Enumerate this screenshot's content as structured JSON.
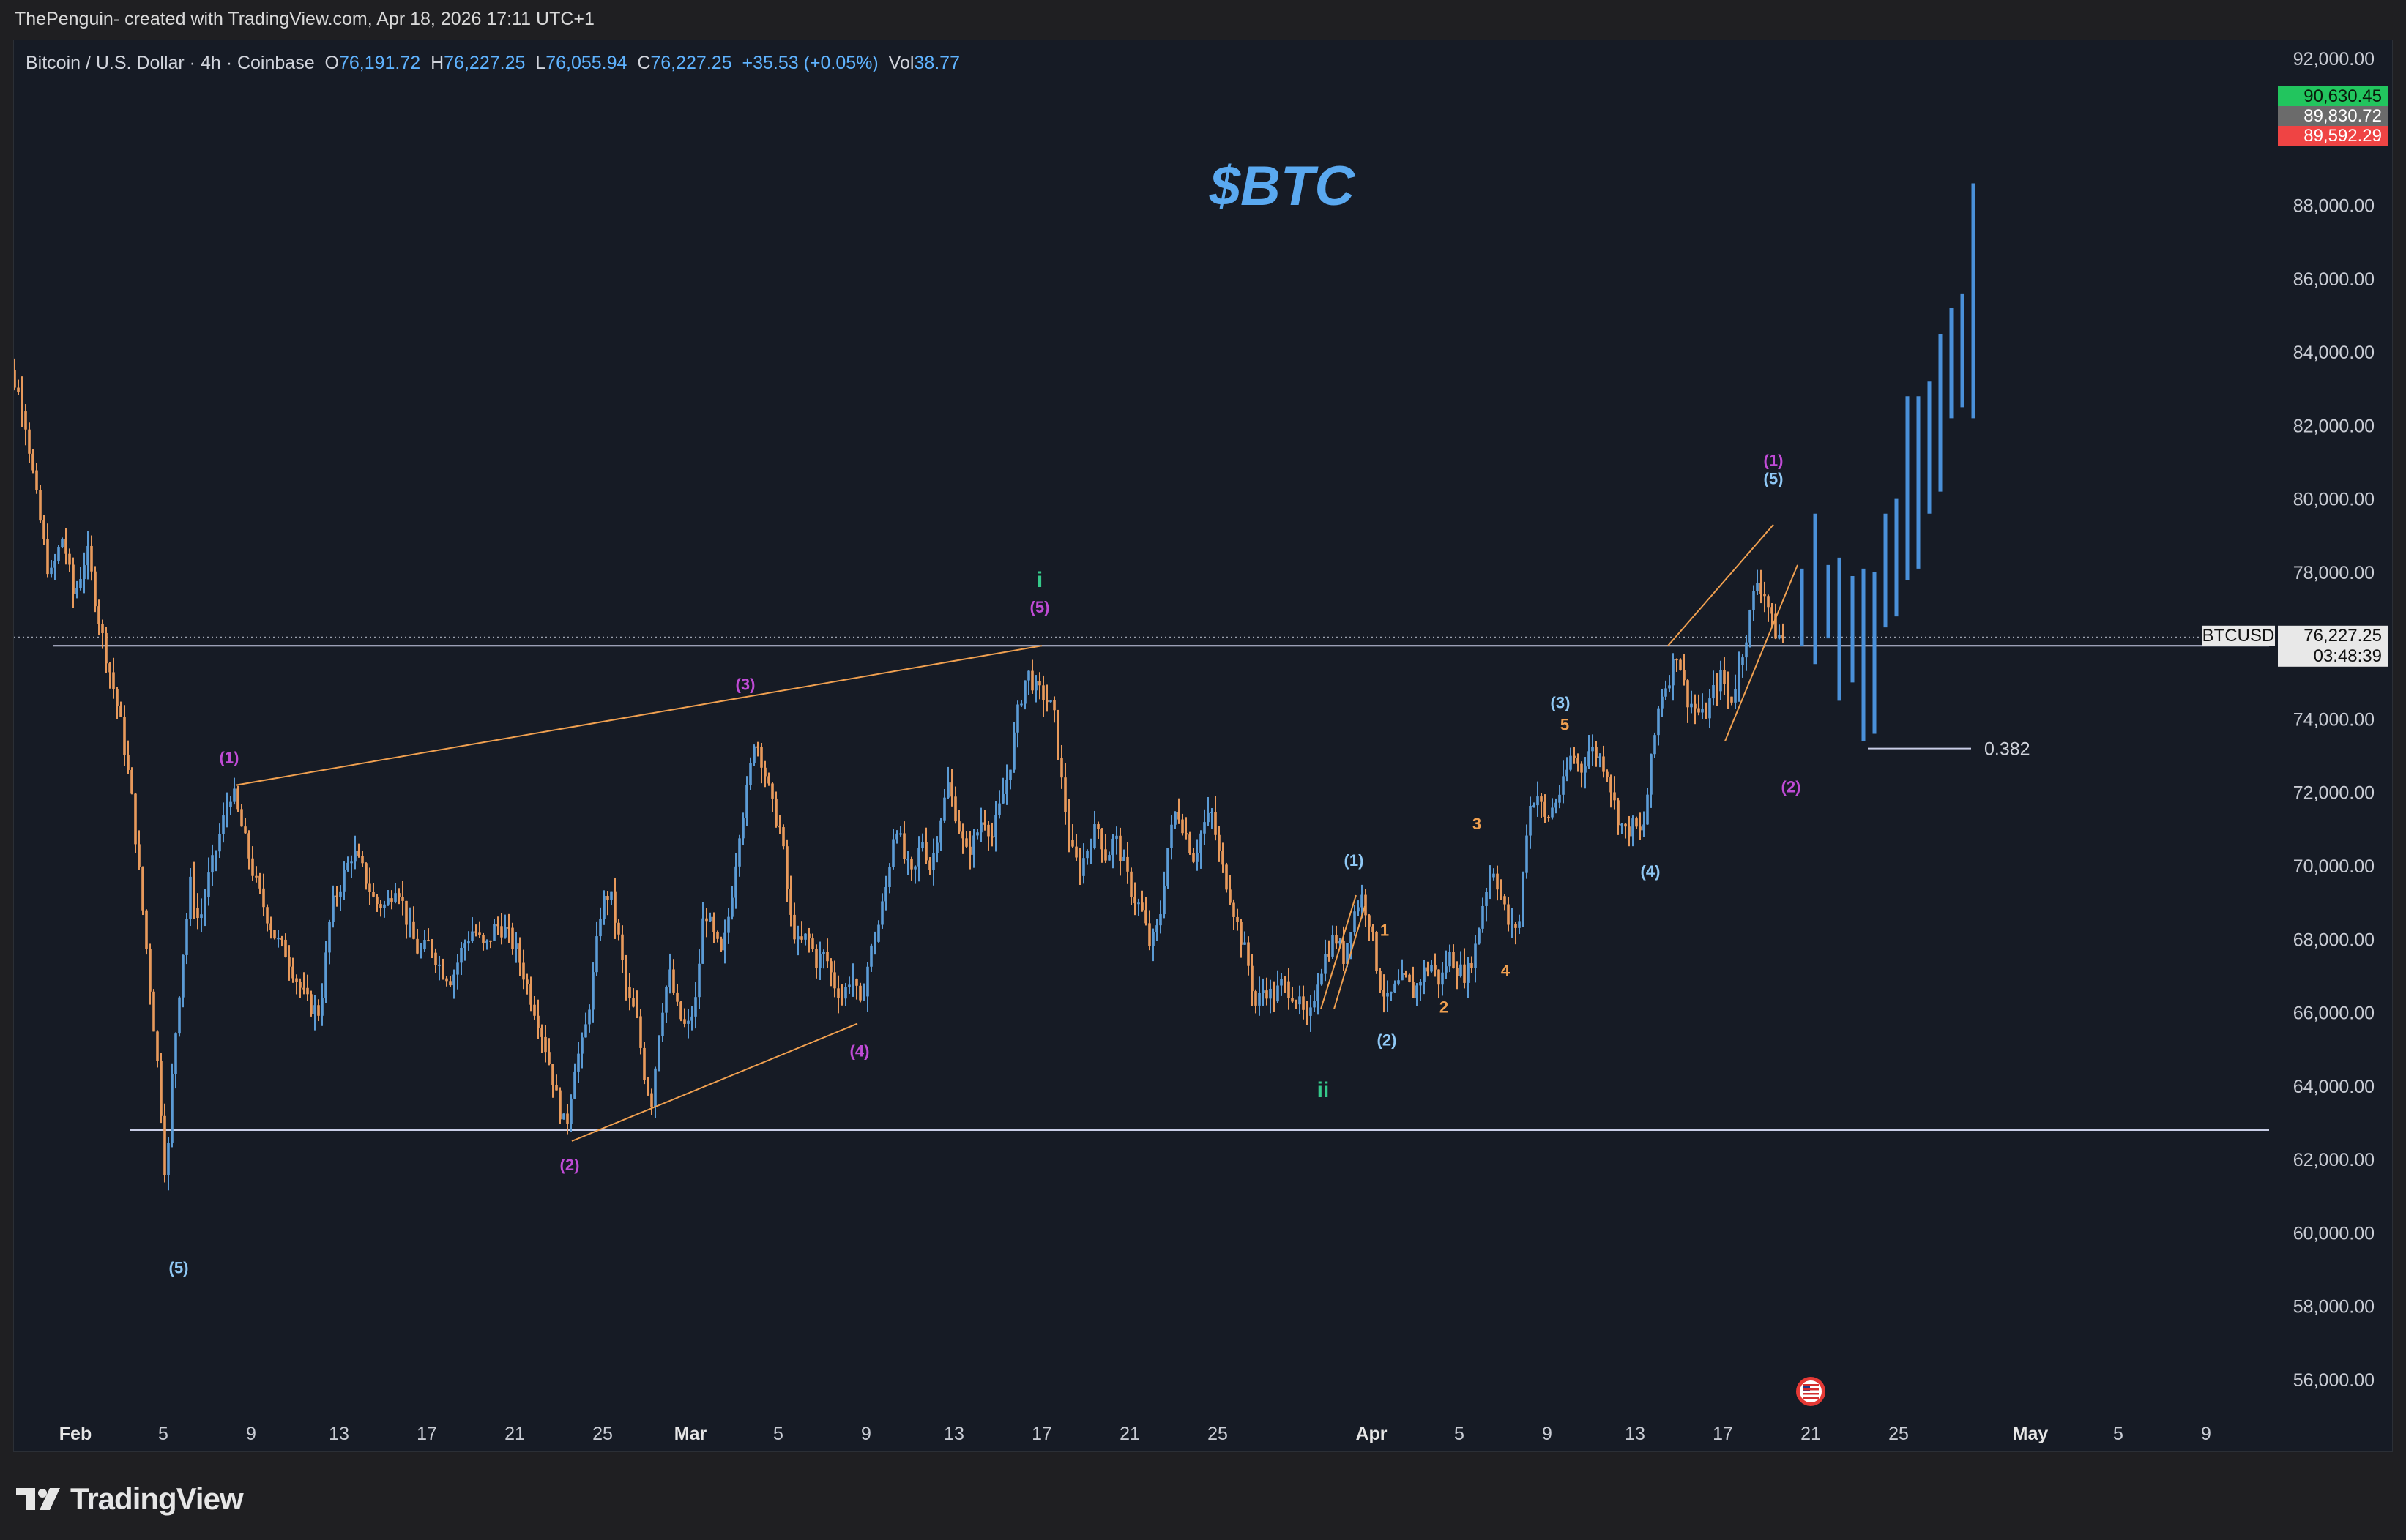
{
  "header": {
    "attribution": "ThePenguin- created with TradingView.com, Apr 18, 2026 17:11 UTC+1"
  },
  "legend": {
    "symbol": "Bitcoin / U.S. Dollar · 4h · Coinbase",
    "o_label": "O",
    "o_value": "76,191.72",
    "h_label": "H",
    "h_value": "76,227.25",
    "l_label": "L",
    "l_value": "76,055.94",
    "c_label": "C",
    "c_value": "76,227.25",
    "change": "+35.53 (+0.05%)",
    "vol_label": "Vol",
    "vol_value": "38.77"
  },
  "footer": {
    "brand": "TradingView"
  },
  "colors": {
    "background": "#161b25",
    "bull": "#5b9bd5",
    "bear": "#e89a5c",
    "projection": "#4a90d9",
    "title": "#5aa9f0",
    "magenta": "#c04bd6",
    "lightblue": "#8fc8f5",
    "orange": "#f0a050",
    "green": "#35c98a",
    "level_line": "#c8cde6"
  },
  "chart_data": {
    "type": "candlestick",
    "title": "$BTC",
    "instrument": "BTCUSD",
    "timeframe": "4h",
    "ylim": [
      55000,
      92500
    ],
    "y_ticks": [
      56000,
      58000,
      60000,
      62000,
      64000,
      66000,
      68000,
      70000,
      72000,
      74000,
      76000,
      78000,
      80000,
      82000,
      84000,
      86000,
      88000,
      90000,
      92000
    ],
    "y_tick_labels": [
      "56,000.00",
      "58,000.00",
      "60,000.00",
      "62,000.00",
      "64,000.00",
      "66,000.00",
      "68,000.00",
      "70,000.00",
      "72,000.00",
      "74,000.00",
      "76,000.00",
      "78,000.00",
      "80,000.00",
      "82,000.00",
      "84,000.00",
      "86,000.00",
      "88,000.00",
      "90,000.00",
      "92,000.00"
    ],
    "x_ticks": [
      {
        "label": "Feb",
        "day": 1,
        "bold": true
      },
      {
        "label": "5",
        "day": 5
      },
      {
        "label": "9",
        "day": 9
      },
      {
        "label": "13",
        "day": 13
      },
      {
        "label": "17",
        "day": 17
      },
      {
        "label": "21",
        "day": 21
      },
      {
        "label": "25",
        "day": 25
      },
      {
        "label": "Mar",
        "day": 29,
        "bold": true
      },
      {
        "label": "5",
        "day": 33
      },
      {
        "label": "9",
        "day": 37
      },
      {
        "label": "13",
        "day": 41
      },
      {
        "label": "17",
        "day": 45
      },
      {
        "label": "21",
        "day": 49
      },
      {
        "label": "25",
        "day": 53
      },
      {
        "label": "Apr",
        "day": 60,
        "bold": true
      },
      {
        "label": "5",
        "day": 64
      },
      {
        "label": "9",
        "day": 68
      },
      {
        "label": "13",
        "day": 72
      },
      {
        "label": "17",
        "day": 76
      },
      {
        "label": "21",
        "day": 80
      },
      {
        "label": "25",
        "day": 84
      },
      {
        "label": "May",
        "day": 90,
        "bold": true
      },
      {
        "label": "5",
        "day": 94
      },
      {
        "label": "9",
        "day": 98
      }
    ],
    "price_path": [
      [
        -2.6,
        88200
      ],
      [
        -2.3,
        84000
      ],
      [
        -1.8,
        83500
      ],
      [
        -1.2,
        82500
      ],
      [
        -0.6,
        80000
      ],
      [
        0.0,
        77800
      ],
      [
        0.6,
        79000
      ],
      [
        1.1,
        77300
      ],
      [
        1.7,
        78600
      ],
      [
        2.3,
        76500
      ],
      [
        2.7,
        75400
      ],
      [
        3.2,
        74000
      ],
      [
        3.7,
        72000
      ],
      [
        4.2,
        69000
      ],
      [
        4.6,
        66500
      ],
      [
        5.0,
        64000
      ],
      [
        5.3,
        61200
      ],
      [
        5.6,
        64600
      ],
      [
        6.0,
        67300
      ],
      [
        6.4,
        69500
      ],
      [
        6.8,
        68400
      ],
      [
        7.2,
        69600
      ],
      [
        7.6,
        70500
      ],
      [
        8.0,
        71500
      ],
      [
        8.3,
        72100
      ],
      [
        8.8,
        70900
      ],
      [
        9.3,
        69700
      ],
      [
        9.8,
        68800
      ],
      [
        10.3,
        68000
      ],
      [
        10.8,
        67600
      ],
      [
        11.3,
        66800
      ],
      [
        11.8,
        66200
      ],
      [
        12.3,
        66000
      ],
      [
        12.8,
        68800
      ],
      [
        13.3,
        69600
      ],
      [
        13.8,
        70400
      ],
      [
        14.3,
        69800
      ],
      [
        14.8,
        69000
      ],
      [
        15.3,
        68900
      ],
      [
        15.8,
        69600
      ],
      [
        16.3,
        68400
      ],
      [
        16.8,
        67600
      ],
      [
        17.3,
        67900
      ],
      [
        17.8,
        67200
      ],
      [
        18.3,
        66900
      ],
      [
        18.8,
        67800
      ],
      [
        19.3,
        68300
      ],
      [
        19.8,
        67700
      ],
      [
        20.3,
        68400
      ],
      [
        20.8,
        68200
      ],
      [
        21.3,
        67600
      ],
      [
        21.8,
        66600
      ],
      [
        22.3,
        65700
      ],
      [
        22.8,
        64500
      ],
      [
        23.1,
        63600
      ],
      [
        23.5,
        62800
      ],
      [
        23.9,
        64600
      ],
      [
        24.3,
        65200
      ],
      [
        24.7,
        66800
      ],
      [
        25.1,
        68900
      ],
      [
        25.5,
        69300
      ],
      [
        25.9,
        68000
      ],
      [
        26.3,
        66400
      ],
      [
        26.7,
        65900
      ],
      [
        27.1,
        64200
      ],
      [
        27.4,
        63600
      ],
      [
        27.8,
        65900
      ],
      [
        28.2,
        67100
      ],
      [
        28.6,
        66000
      ],
      [
        29.0,
        65500
      ],
      [
        29.4,
        66300
      ],
      [
        29.8,
        68900
      ],
      [
        30.2,
        68100
      ],
      [
        30.6,
        67500
      ],
      [
        31.0,
        69000
      ],
      [
        31.4,
        71000
      ],
      [
        31.8,
        72200
      ],
      [
        32.1,
        73600
      ],
      [
        32.5,
        72700
      ],
      [
        32.9,
        71600
      ],
      [
        33.3,
        70900
      ],
      [
        33.7,
        68600
      ],
      [
        34.1,
        67800
      ],
      [
        34.5,
        68100
      ],
      [
        34.9,
        67400
      ],
      [
        35.3,
        67600
      ],
      [
        35.7,
        66800
      ],
      [
        36.1,
        66400
      ],
      [
        36.5,
        67100
      ],
      [
        36.9,
        66100
      ],
      [
        37.3,
        67500
      ],
      [
        37.7,
        68300
      ],
      [
        38.1,
        69500
      ],
      [
        38.5,
        71300
      ],
      [
        38.9,
        70200
      ],
      [
        39.3,
        69600
      ],
      [
        39.7,
        70800
      ],
      [
        40.1,
        69900
      ],
      [
        40.5,
        71200
      ],
      [
        40.9,
        72200
      ],
      [
        41.3,
        71300
      ],
      [
        41.7,
        70300
      ],
      [
        42.1,
        70700
      ],
      [
        42.5,
        71400
      ],
      [
        42.9,
        70800
      ],
      [
        43.3,
        71700
      ],
      [
        43.7,
        72700
      ],
      [
        44.1,
        74300
      ],
      [
        44.5,
        75300
      ],
      [
        44.9,
        74800
      ],
      [
        45.3,
        74600
      ],
      [
        45.7,
        74200
      ],
      [
        46.1,
        72100
      ],
      [
        46.5,
        70400
      ],
      [
        46.9,
        69900
      ],
      [
        47.3,
        70600
      ],
      [
        47.7,
        71100
      ],
      [
        48.1,
        70200
      ],
      [
        48.5,
        70800
      ],
      [
        48.9,
        70000
      ],
      [
        49.3,
        69200
      ],
      [
        49.7,
        68800
      ],
      [
        50.1,
        67800
      ],
      [
        50.5,
        68400
      ],
      [
        50.9,
        70500
      ],
      [
        51.3,
        71600
      ],
      [
        51.7,
        70900
      ],
      [
        52.1,
        70200
      ],
      [
        52.5,
        71100
      ],
      [
        52.9,
        71400
      ],
      [
        53.3,
        70100
      ],
      [
        53.7,
        69300
      ],
      [
        54.1,
        68300
      ],
      [
        54.5,
        67500
      ],
      [
        54.9,
        66200
      ],
      [
        55.3,
        66700
      ],
      [
        55.7,
        66400
      ],
      [
        56.1,
        66800
      ],
      [
        56.5,
        66600
      ],
      [
        56.9,
        66200
      ],
      [
        57.3,
        65600
      ],
      [
        57.7,
        66900
      ],
      [
        58.1,
        67600
      ],
      [
        58.5,
        68100
      ],
      [
        58.9,
        67500
      ],
      [
        59.3,
        68600
      ],
      [
        59.7,
        69200
      ],
      [
        60.1,
        68500
      ],
      [
        60.5,
        66900
      ],
      [
        60.9,
        66300
      ],
      [
        61.3,
        66700
      ],
      [
        61.7,
        66900
      ],
      [
        62.1,
        66500
      ],
      [
        62.5,
        67100
      ],
      [
        62.9,
        67300
      ],
      [
        63.3,
        66800
      ],
      [
        63.7,
        67600
      ],
      [
        64.1,
        67200
      ],
      [
        64.5,
        67000
      ],
      [
        64.9,
        67800
      ],
      [
        65.3,
        69200
      ],
      [
        65.7,
        70000
      ],
      [
        66.1,
        69100
      ],
      [
        66.5,
        68200
      ],
      [
        66.9,
        68500
      ],
      [
        67.3,
        71500
      ],
      [
        67.7,
        72000
      ],
      [
        68.1,
        71200
      ],
      [
        68.5,
        71700
      ],
      [
        68.9,
        72200
      ],
      [
        69.3,
        73100
      ],
      [
        69.7,
        72600
      ],
      [
        70.1,
        73200
      ],
      [
        70.5,
        73000
      ],
      [
        70.9,
        72600
      ],
      [
        71.3,
        71500
      ],
      [
        71.7,
        70900
      ],
      [
        72.1,
        71100
      ],
      [
        72.5,
        70800
      ],
      [
        72.9,
        72800
      ],
      [
        73.3,
        74600
      ],
      [
        73.7,
        75100
      ],
      [
        74.1,
        75900
      ],
      [
        74.5,
        74600
      ],
      [
        74.9,
        74300
      ],
      [
        75.3,
        74000
      ],
      [
        75.7,
        74700
      ],
      [
        76.1,
        75200
      ],
      [
        76.5,
        74400
      ],
      [
        76.9,
        75400
      ],
      [
        77.3,
        76500
      ],
      [
        77.7,
        77800
      ],
      [
        78.1,
        77400
      ],
      [
        78.5,
        76400
      ],
      [
        78.9,
        76200
      ]
    ],
    "projection": [
      {
        "day": 79.6,
        "low": 76000,
        "high": 78100
      },
      {
        "day": 80.2,
        "low": 75500,
        "high": 79600
      },
      {
        "day": 80.8,
        "low": 76200,
        "high": 78200
      },
      {
        "day": 81.3,
        "low": 74500,
        "high": 78400
      },
      {
        "day": 81.9,
        "low": 75000,
        "high": 77900
      },
      {
        "day": 82.4,
        "low": 73400,
        "high": 78100
      },
      {
        "day": 82.9,
        "low": 73600,
        "high": 78000
      },
      {
        "day": 83.4,
        "low": 76500,
        "high": 79600
      },
      {
        "day": 83.9,
        "low": 76800,
        "high": 80000
      },
      {
        "day": 84.4,
        "low": 77800,
        "high": 82800
      },
      {
        "day": 84.9,
        "low": 78100,
        "high": 82800
      },
      {
        "day": 85.4,
        "low": 79600,
        "high": 83200
      },
      {
        "day": 85.9,
        "low": 80200,
        "high": 84500
      },
      {
        "day": 86.4,
        "low": 82200,
        "high": 85200
      },
      {
        "day": 86.9,
        "low": 82500,
        "high": 85600
      },
      {
        "day": 87.4,
        "low": 82200,
        "high": 88600
      }
    ],
    "horizontal_levels": [
      {
        "price": 76000,
        "from_day": 0,
        "style": "solid"
      },
      {
        "price": 76227.25,
        "from_day": -3,
        "style": "dotted"
      },
      {
        "price": 62800,
        "from_day": 3.5,
        "style": "solid"
      },
      {
        "price": 73200,
        "from_day": 82.6,
        "to_day": 87.3,
        "style": "solid",
        "label": "0.382"
      }
    ],
    "trend_lines": [
      {
        "points": [
          [
            8.3,
            72200
          ],
          [
            45.0,
            76000
          ]
        ]
      },
      {
        "points": [
          [
            23.6,
            62500
          ],
          [
            36.6,
            65700
          ]
        ]
      },
      {
        "points": [
          [
            57.7,
            66100
          ],
          [
            59.3,
            69200
          ]
        ]
      },
      {
        "points": [
          [
            58.3,
            66100
          ],
          [
            59.7,
            68900
          ]
        ]
      },
      {
        "points": [
          [
            73.5,
            76000
          ],
          [
            78.3,
            79300
          ]
        ]
      },
      {
        "points": [
          [
            76.1,
            73400
          ],
          [
            79.4,
            78200
          ]
        ]
      }
    ],
    "wave_labels": [
      {
        "text": "(5)",
        "day": 5.7,
        "price": 58900,
        "color": "lightblue"
      },
      {
        "text": "(1)",
        "day": 8.0,
        "price": 72800,
        "color": "magenta"
      },
      {
        "text": "(2)",
        "day": 23.5,
        "price": 61700,
        "color": "magenta"
      },
      {
        "text": "(3)",
        "day": 31.5,
        "price": 74800,
        "color": "magenta"
      },
      {
        "text": "(4)",
        "day": 36.7,
        "price": 64800,
        "color": "magenta"
      },
      {
        "text": "(5)",
        "day": 44.9,
        "price": 76900,
        "color": "magenta"
      },
      {
        "text": "i",
        "day": 44.9,
        "price": 77600,
        "color": "green"
      },
      {
        "text": "ii",
        "day": 57.8,
        "price": 63700,
        "color": "green"
      },
      {
        "text": "(1)",
        "day": 59.2,
        "price": 70000,
        "color": "lightblue"
      },
      {
        "text": "(2)",
        "day": 60.7,
        "price": 65100,
        "color": "lightblue"
      },
      {
        "text": "1",
        "day": 60.6,
        "price": 68100,
        "color": "orange"
      },
      {
        "text": "2",
        "day": 63.3,
        "price": 66000,
        "color": "orange"
      },
      {
        "text": "3",
        "day": 64.8,
        "price": 71000,
        "color": "orange"
      },
      {
        "text": "4",
        "day": 66.1,
        "price": 67000,
        "color": "orange"
      },
      {
        "text": "5",
        "day": 68.8,
        "price": 73700,
        "color": "orange"
      },
      {
        "text": "(3)",
        "day": 68.6,
        "price": 74300,
        "color": "lightblue"
      },
      {
        "text": "(4)",
        "day": 72.7,
        "price": 69700,
        "color": "lightblue"
      },
      {
        "text": "(1)",
        "day": 78.3,
        "price": 80900,
        "color": "magenta"
      },
      {
        "text": "(5)",
        "day": 78.3,
        "price": 80400,
        "color": "lightblue"
      },
      {
        "text": "(2)",
        "day": 79.1,
        "price": 72000,
        "color": "magenta"
      }
    ],
    "price_tags": [
      {
        "text": "90,630.45",
        "price": 90630.45,
        "bg": "#22c55e",
        "fg": "#0a1a0a"
      },
      {
        "text": "89,830.72",
        "price": 89830.72,
        "bg": "#6b6b6b",
        "fg": "#ffffff"
      },
      {
        "text": "89,592.29",
        "price": 89592.29,
        "bg": "#ef4444",
        "fg": "#ffffff"
      },
      {
        "text": "76,227.25",
        "price": 76227.25,
        "bg": "#e8e8e8",
        "fg": "#111111"
      }
    ],
    "current_tag": {
      "symbol": "BTCUSD",
      "countdown": "03:48:39"
    },
    "event_marker": {
      "day": 80.0,
      "icon": "us-flag-icon"
    }
  }
}
